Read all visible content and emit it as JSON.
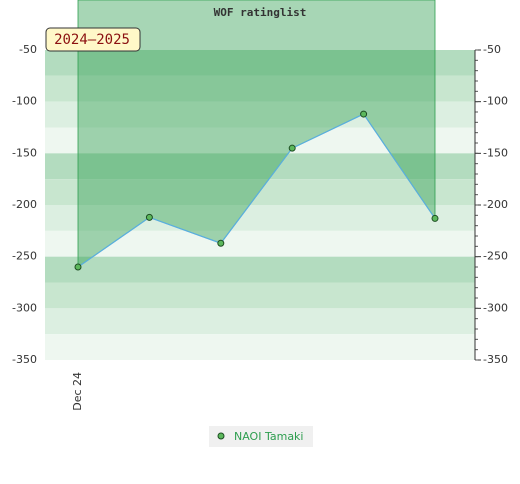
{
  "chart_data": {
    "type": "line",
    "title": "WOF ratinglist",
    "annotation": "2024–2025",
    "categories": [
      "Dec 24",
      null,
      null,
      null,
      null,
      null
    ],
    "series": [
      {
        "name": "NAOI Tamaki",
        "color": "#5aaee0",
        "values": [
          -260,
          -212,
          -237,
          -145,
          -112,
          -213
        ]
      }
    ],
    "ylim": [
      -350,
      -50
    ],
    "yticks": [
      -350,
      -300,
      -250,
      -200,
      -150,
      -100,
      -50
    ]
  }
}
